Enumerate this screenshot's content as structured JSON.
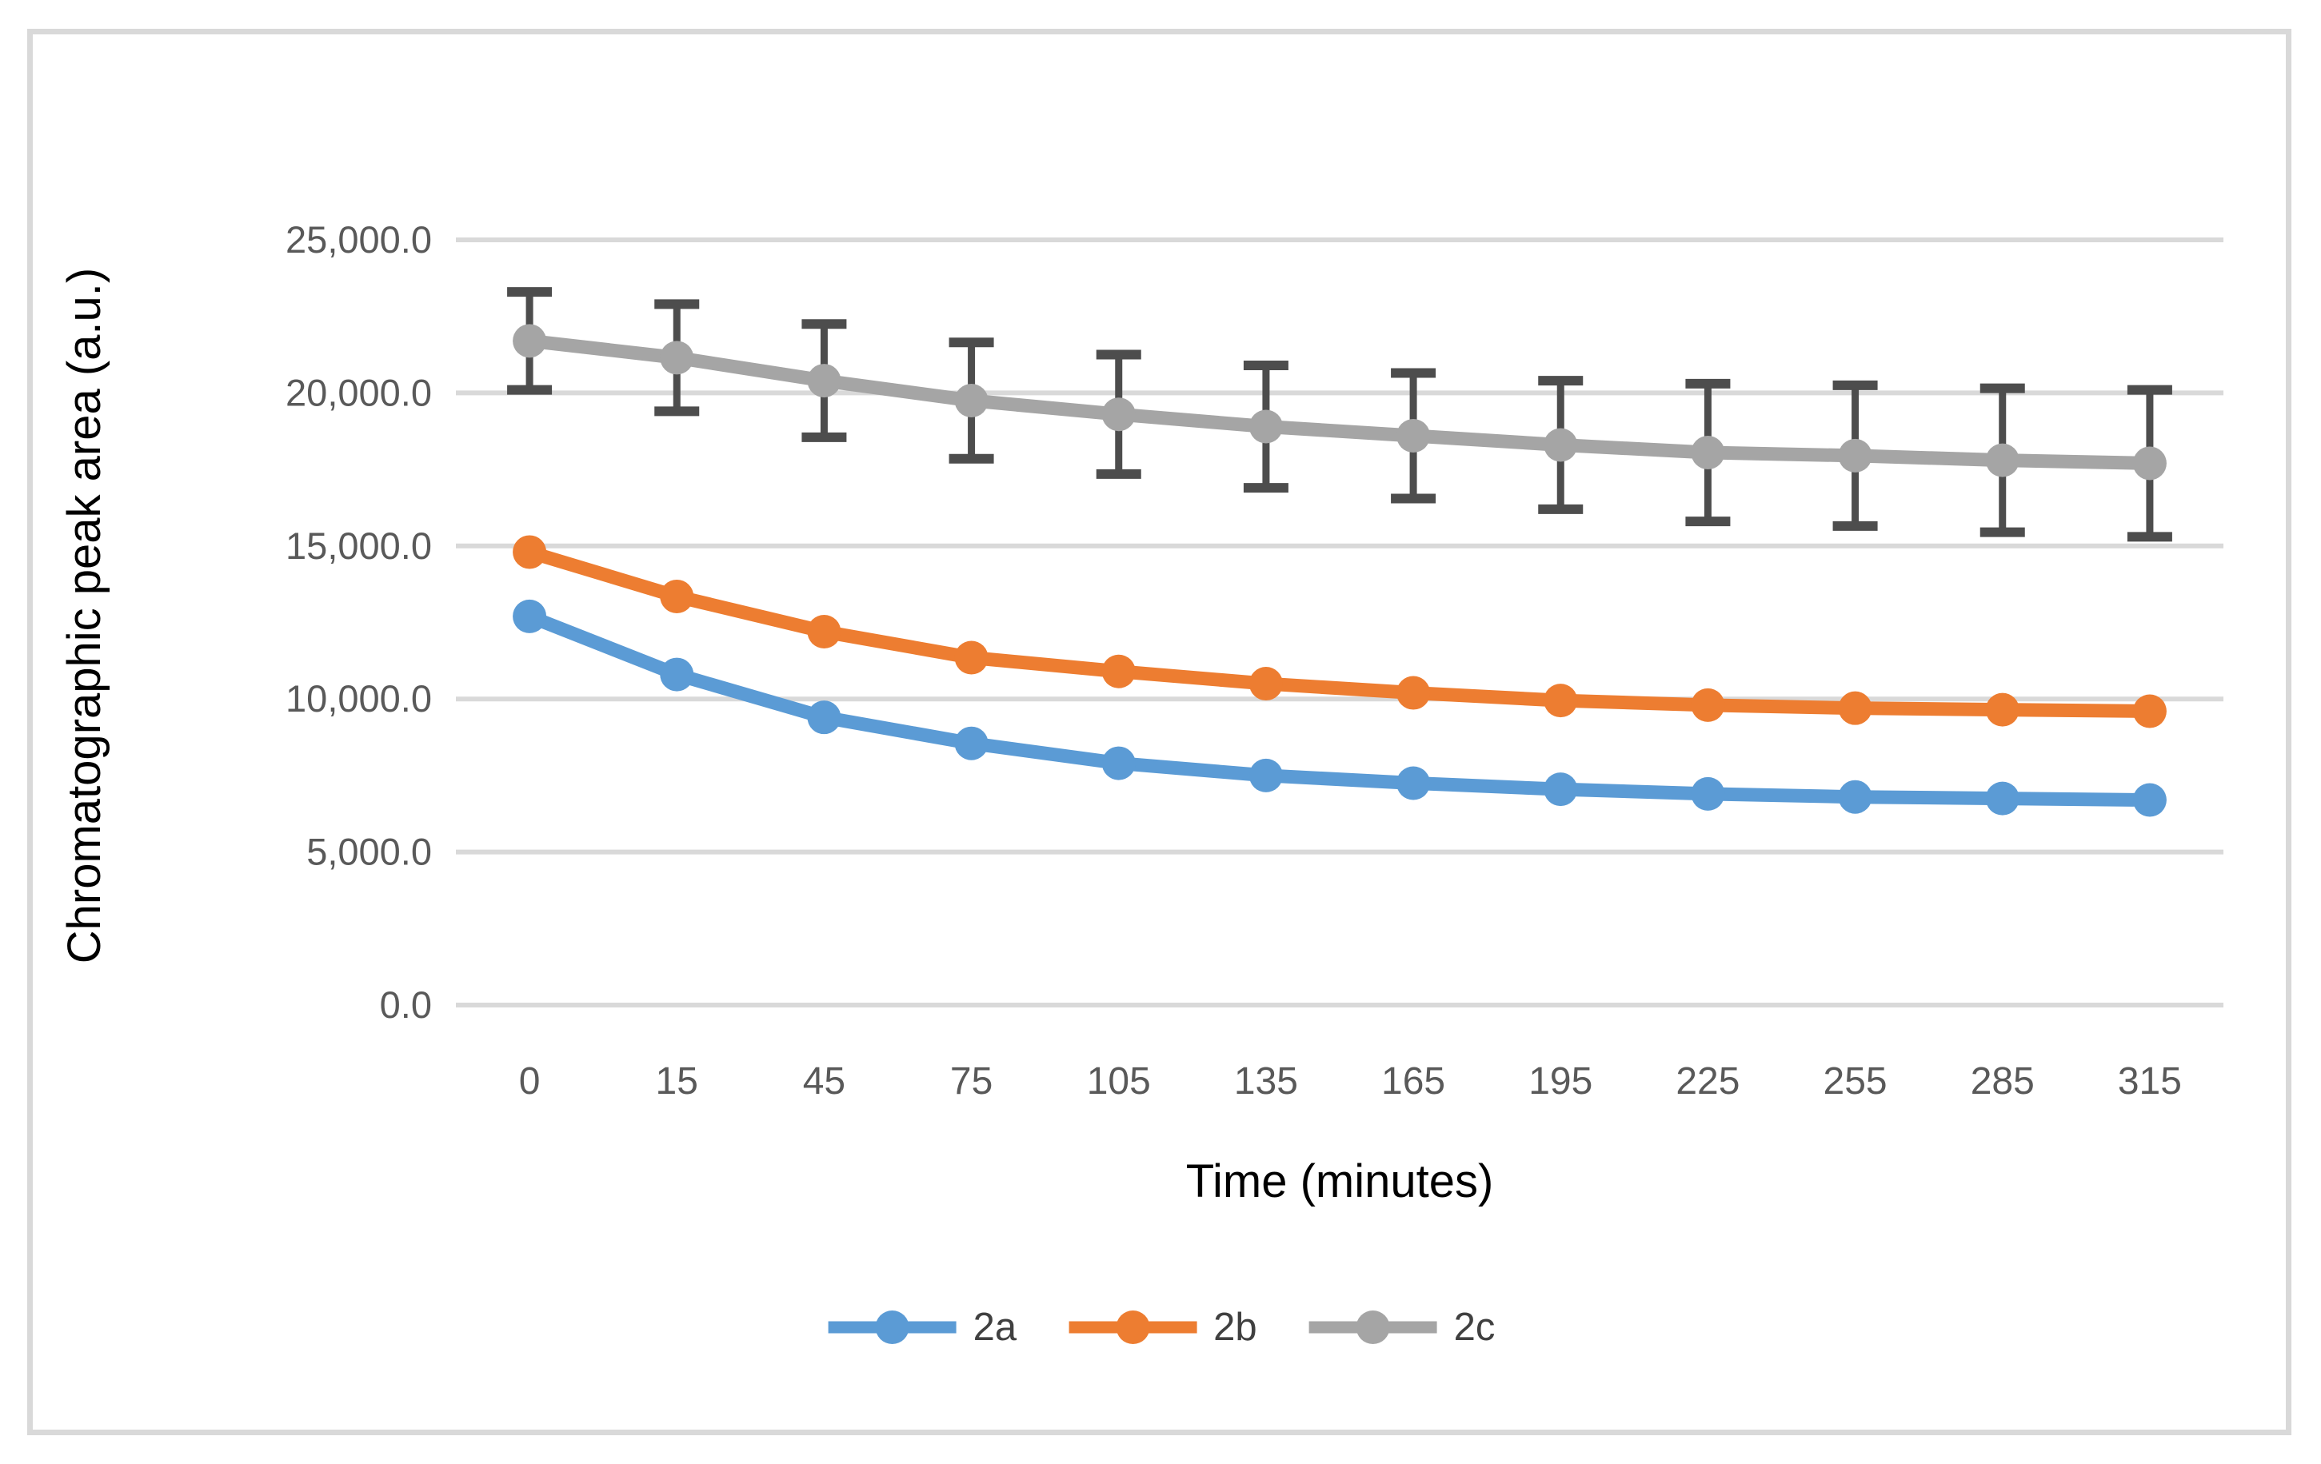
{
  "chart_data": {
    "type": "line",
    "title": "",
    "xlabel": "Time (minutes)",
    "ylabel": "Chromatographic peak area (a.u.)",
    "x_tick_labels": [
      "0",
      "15",
      "45",
      "75",
      "105",
      "135",
      "165",
      "195",
      "225",
      "255",
      "285",
      "315"
    ],
    "x": [
      0,
      15,
      45,
      75,
      105,
      135,
      165,
      195,
      225,
      255,
      285,
      315
    ],
    "y_ticks": [
      {
        "value": 0,
        "label": "0.0"
      },
      {
        "value": 5000,
        "label": "5,000.0"
      },
      {
        "value": 10000,
        "label": "10,000.0"
      },
      {
        "value": 15000,
        "label": "15,000.0"
      },
      {
        "value": 20000,
        "label": "20,000.0"
      },
      {
        "value": 25000,
        "label": "25,000.0"
      }
    ],
    "ylim": [
      0,
      25000
    ],
    "grid": "horizontal",
    "legend_position": "bottom-center",
    "series": [
      {
        "name": "2a",
        "color": "#5B9BD5",
        "values": [
          12700,
          10800,
          9400,
          8550,
          7900,
          7500,
          7250,
          7050,
          6900,
          6800,
          6750,
          6700
        ]
      },
      {
        "name": "2b",
        "color": "#ED7D31",
        "values": [
          14800,
          13350,
          12200,
          11350,
          10900,
          10500,
          10200,
          9950,
          9800,
          9700,
          9650,
          9600
        ]
      },
      {
        "name": "2c",
        "color": "#A5A5A5",
        "values": [
          21700,
          21150,
          20400,
          19750,
          19300,
          18900,
          18600,
          18300,
          18050,
          17950,
          17800,
          17700
        ],
        "error": [
          1600,
          1750,
          1850,
          1900,
          1950,
          2000,
          2050,
          2100,
          2250,
          2300,
          2350,
          2400
        ],
        "error_color": "#4D4D4D"
      }
    ]
  },
  "styles": {
    "frame_color": "#D9D9D9",
    "gridline_color": "#D9D9D9",
    "tick_label_color": "#595959",
    "axis_title_color": "#000000",
    "legend_text_color": "#404040",
    "background": "#FFFFFF"
  }
}
